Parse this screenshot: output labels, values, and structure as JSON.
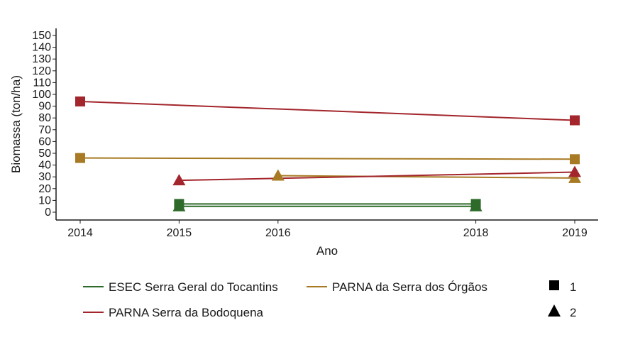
{
  "chart_data": {
    "type": "line",
    "xlabel": "Ano",
    "ylabel": "Biomassa (ton/ha)",
    "x_ticks": [
      2014,
      2015,
      2016,
      2018,
      2019
    ],
    "xlim": [
      2014,
      2019
    ],
    "y_ticks": [
      0,
      10,
      20,
      30,
      40,
      50,
      60,
      70,
      80,
      90,
      100,
      110,
      120,
      130,
      140,
      150
    ],
    "ylim": [
      0,
      150
    ],
    "grid": false,
    "legend_position": "bottom",
    "series": [
      {
        "name": "ESEC Serra Geral do Tocantins",
        "marker": "1",
        "color": "#2e6b2a",
        "points": [
          {
            "x": 2015,
            "y": 7
          },
          {
            "x": 2018,
            "y": 7
          }
        ]
      },
      {
        "name": "ESEC Serra Geral do Tocantins",
        "marker": "2",
        "color": "#2e6b2a",
        "points": [
          {
            "x": 2015,
            "y": 5
          },
          {
            "x": 2018,
            "y": 5
          }
        ]
      },
      {
        "name": "PARNA da Serra dos Órgãos",
        "marker": "1",
        "color": "#a77a23",
        "points": [
          {
            "x": 2014,
            "y": 46
          },
          {
            "x": 2019,
            "y": 45
          }
        ]
      },
      {
        "name": "PARNA da Serra dos Órgãos",
        "marker": "2",
        "color": "#a77a23",
        "points": [
          {
            "x": 2016,
            "y": 31
          },
          {
            "x": 2019,
            "y": 29
          }
        ]
      },
      {
        "name": "PARNA Serra da Bodoquena",
        "marker": "1",
        "color": "#a3262c",
        "points": [
          {
            "x": 2014,
            "y": 94
          },
          {
            "x": 2019,
            "y": 78
          }
        ]
      },
      {
        "name": "PARNA Serra da Bodoquena",
        "marker": "2",
        "color": "#a3262c",
        "points": [
          {
            "x": 2015,
            "y": 27
          },
          {
            "x": 2019,
            "y": 34
          }
        ]
      }
    ],
    "legend": {
      "color_entries": [
        {
          "label": "ESEC Serra Geral do Tocantins",
          "color": "#2e6b2a"
        },
        {
          "label": "PARNA da Serra dos Órgãos",
          "color": "#a77a23"
        },
        {
          "label": "PARNA Serra da Bodoquena",
          "color": "#a3262c"
        }
      ],
      "shape_entries": [
        {
          "label": "1",
          "shape": "square"
        },
        {
          "label": "2",
          "shape": "triangle"
        }
      ]
    }
  }
}
